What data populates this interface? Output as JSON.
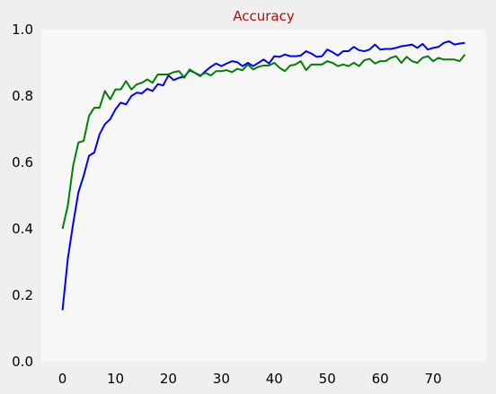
{
  "chart_data": {
    "type": "line",
    "title": "Accuracy",
    "title_color": "#b01010",
    "xlabel": "",
    "ylabel": "",
    "xlim": [
      -4,
      80
    ],
    "ylim": [
      0,
      1.0
    ],
    "xticks": [
      "0",
      "10",
      "20",
      "30",
      "40",
      "50",
      "60",
      "70"
    ],
    "xtick_values": [
      0,
      10,
      20,
      30,
      40,
      50,
      60,
      70
    ],
    "yticks": [
      "0.0",
      "0.2",
      "0.4",
      "0.6",
      "0.8",
      "1.0"
    ],
    "ytick_values": [
      0,
      0.2,
      0.4,
      0.6,
      0.8,
      1.0
    ],
    "grid": false,
    "figure_background": "#efefef",
    "plot_background": "#f7f7f7",
    "series": [
      {
        "color": "#0000ff",
        "values": [
          0.155,
          0.31,
          0.415,
          0.51,
          0.56,
          0.62,
          0.63,
          0.685,
          0.715,
          0.73,
          0.76,
          0.78,
          0.775,
          0.8,
          0.81,
          0.808,
          0.822,
          0.815,
          0.836,
          0.832,
          0.862,
          0.848,
          0.855,
          0.858,
          0.877,
          0.87,
          0.86,
          0.875,
          0.888,
          0.898,
          0.89,
          0.898,
          0.905,
          0.902,
          0.89,
          0.9,
          0.89,
          0.9,
          0.91,
          0.898,
          0.92,
          0.918,
          0.925,
          0.92,
          0.92,
          0.922,
          0.935,
          0.928,
          0.918,
          0.92,
          0.94,
          0.932,
          0.922,
          0.935,
          0.935,
          0.948,
          0.938,
          0.935,
          0.94,
          0.955,
          0.94,
          0.942,
          0.942,
          0.945,
          0.95,
          0.952,
          0.955,
          0.945,
          0.957,
          0.94,
          0.945,
          0.948,
          0.96,
          0.965,
          0.955,
          0.958,
          0.96
        ]
      },
      {
        "color": "#008000",
        "values": [
          0.4,
          0.47,
          0.59,
          0.66,
          0.665,
          0.74,
          0.765,
          0.765,
          0.815,
          0.79,
          0.82,
          0.82,
          0.845,
          0.82,
          0.835,
          0.84,
          0.85,
          0.84,
          0.865,
          0.865,
          0.865,
          0.872,
          0.875,
          0.855,
          0.88,
          0.87,
          0.862,
          0.87,
          0.862,
          0.875,
          0.875,
          0.878,
          0.872,
          0.882,
          0.878,
          0.895,
          0.88,
          0.888,
          0.892,
          0.892,
          0.9,
          0.885,
          0.875,
          0.892,
          0.895,
          0.905,
          0.878,
          0.895,
          0.895,
          0.895,
          0.905,
          0.9,
          0.89,
          0.895,
          0.89,
          0.9,
          0.89,
          0.908,
          0.912,
          0.898,
          0.905,
          0.905,
          0.915,
          0.92,
          0.9,
          0.918,
          0.905,
          0.9,
          0.915,
          0.92,
          0.905,
          0.915,
          0.91,
          0.91,
          0.91,
          0.905,
          0.925
        ]
      }
    ]
  }
}
